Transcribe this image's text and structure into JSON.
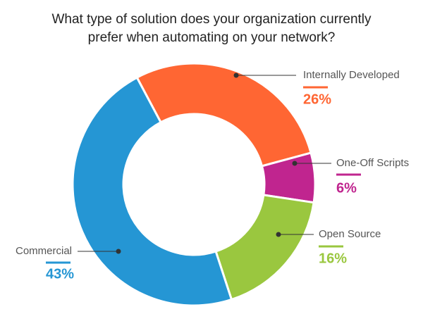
{
  "chart_data": {
    "type": "donut",
    "title": [
      "What type of solution does your organization currently",
      "prefer when automating on your network?"
    ],
    "categories": [
      "Internally Developed",
      "One-Off Scripts",
      "Open Source",
      "Commercial"
    ],
    "values": [
      26,
      6,
      16,
      43
    ],
    "value_labels": [
      "26%",
      "6%",
      "16%",
      "43%"
    ],
    "colors": [
      "#ff6633",
      "#c0258f",
      "#9ac73f",
      "#2596d4"
    ]
  }
}
